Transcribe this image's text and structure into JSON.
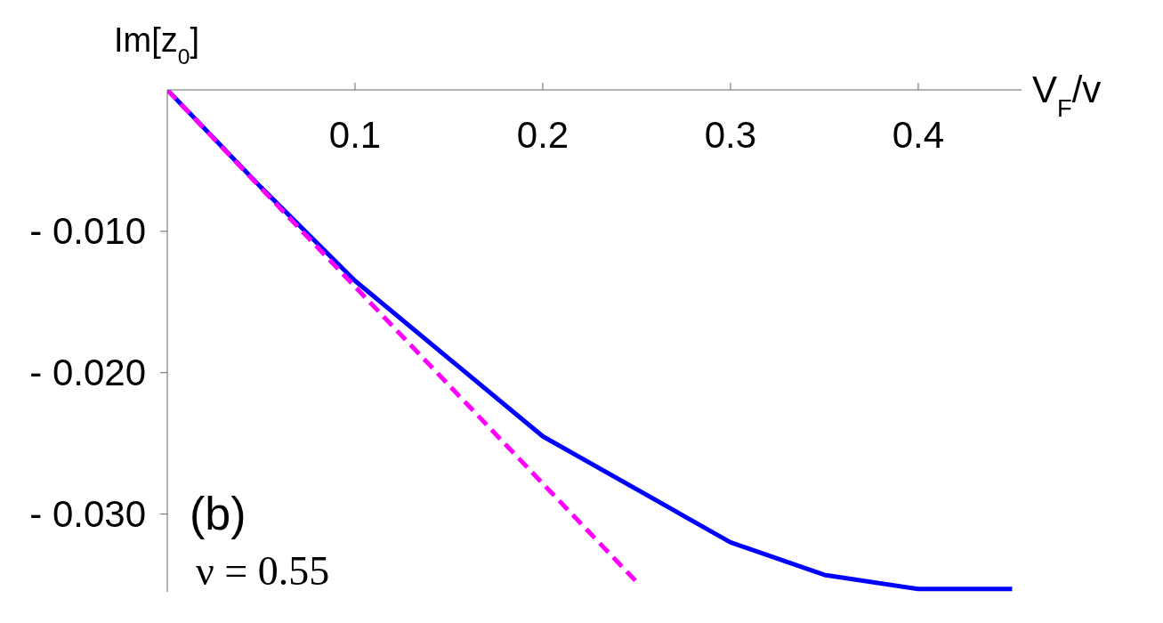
{
  "chart_data": {
    "type": "line",
    "xlabel": "V$_{F}$/v",
    "ylabel": "Im[z$_{0}$]",
    "annotations": [
      "(b)",
      "ν = 0.55"
    ],
    "xlim": [
      0,
      0.455
    ],
    "ylim": [
      -0.0355,
      0
    ],
    "xticks": [
      0.1,
      0.2,
      0.3,
      0.4
    ],
    "yticks": [
      {
        "value": -0.01,
        "label": "- 0.010"
      },
      {
        "value": -0.02,
        "label": "- 0.020"
      },
      {
        "value": -0.03,
        "label": "- 0.030"
      }
    ],
    "series": [
      {
        "color": "#0000ff",
        "line_style": "solid",
        "x": [
          0,
          0.05,
          0.1,
          0.2,
          0.3,
          0.35,
          0.4,
          0.45
        ],
        "values": [
          0,
          -0.0069,
          -0.0135,
          -0.0245,
          -0.032,
          -0.0343,
          -0.0353,
          -0.0353
        ]
      },
      {
        "color": "#ff00ff",
        "line_style": "dashed",
        "x": [
          0,
          0.25
        ],
        "values": [
          0,
          -0.0348
        ]
      }
    ],
    "grid": false,
    "legend": false,
    "marker": "none"
  }
}
